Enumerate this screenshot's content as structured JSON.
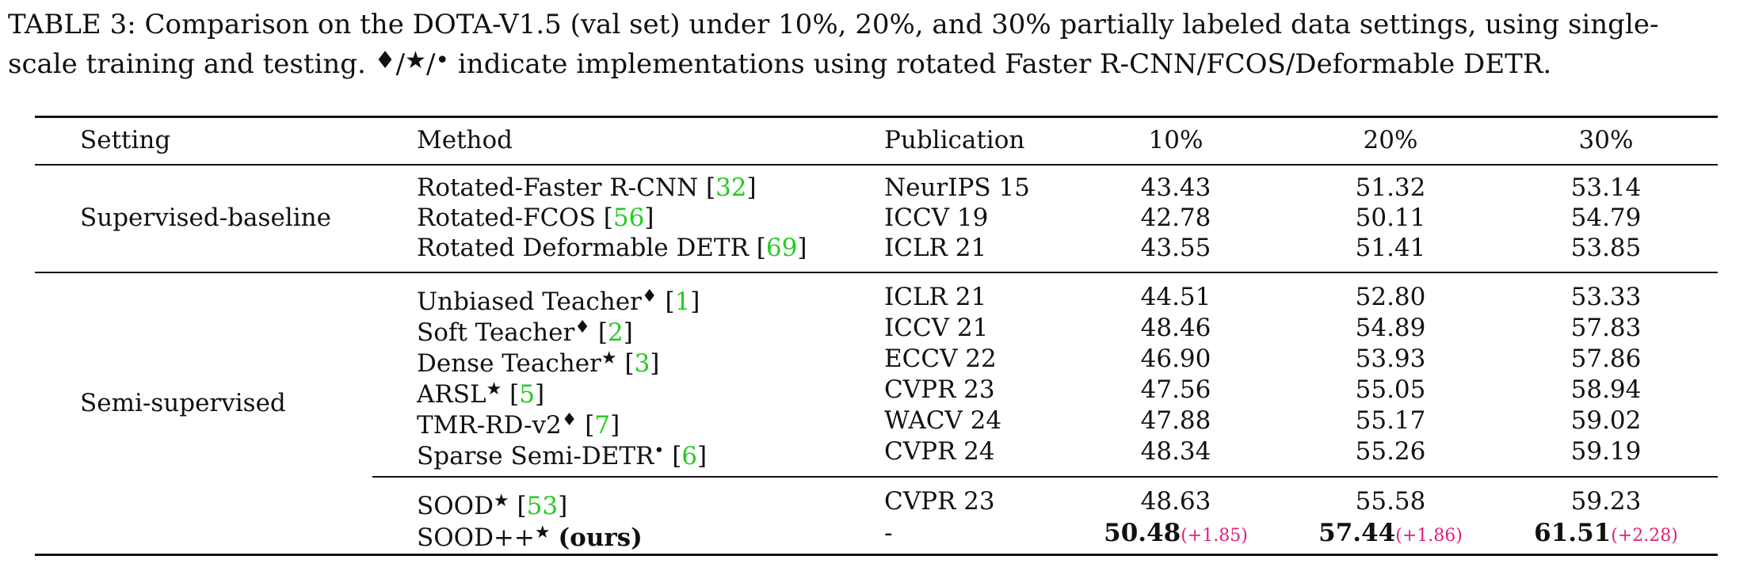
{
  "caption": {
    "line1": "TABLE 3: Comparison on the DOTA-V1.5 (val set) under 10%, 20%, and 30% partially labeled data settings, using single-",
    "line2_pre": "scale training and testing. ",
    "sym1": "♦",
    "sep1": "/",
    "sym2": "★",
    "sep2": "/",
    "sym3": "•",
    "line2_post": " indicate implementations using rotated Faster R-CNN/FCOS/Deformable DETR."
  },
  "header": {
    "setting": "Setting",
    "method": "Method",
    "publication": "Publication",
    "col10": "10%",
    "col20": "20%",
    "col30": "30%"
  },
  "groups": {
    "supervised": "Supervised-baseline",
    "semi": "Semi-supervised"
  },
  "rows": [
    {
      "method": "Rotated-Faster R-CNN",
      "sym": "",
      "ref": "32",
      "pub": "NeurIPS 15",
      "v10": "43.43",
      "v20": "51.32",
      "v30": "53.14"
    },
    {
      "method": "Rotated-FCOS",
      "sym": "",
      "ref": "56",
      "pub": "ICCV 19",
      "v10": "42.78",
      "v20": "50.11",
      "v30": "54.79"
    },
    {
      "method": "Rotated Deformable DETR",
      "sym": "",
      "ref": "69",
      "pub": "ICLR 21",
      "v10": "43.55",
      "v20": "51.41",
      "v30": "53.85"
    },
    {
      "method": "Unbiased Teacher",
      "sym": "♦",
      "ref": "1",
      "pub": "ICLR 21",
      "v10": "44.51",
      "v20": "52.80",
      "v30": "53.33"
    },
    {
      "method": "Soft Teacher",
      "sym": "♦",
      "ref": "2",
      "pub": "ICCV 21",
      "v10": "48.46",
      "v20": "54.89",
      "v30": "57.83"
    },
    {
      "method": "Dense Teacher",
      "sym": "★",
      "ref": "3",
      "pub": "ECCV 22",
      "v10": "46.90",
      "v20": "53.93",
      "v30": "57.86"
    },
    {
      "method": "ARSL",
      "sym": "★",
      "ref": "5",
      "pub": "CVPR 23",
      "v10": "47.56",
      "v20": "55.05",
      "v30": "58.94"
    },
    {
      "method": "TMR-RD-v2",
      "sym": "♦",
      "ref": "7",
      "pub": "WACV 24",
      "v10": "47.88",
      "v20": "55.17",
      "v30": "59.02"
    },
    {
      "method": "Sparse Semi-DETR",
      "sym": "•",
      "ref": "6",
      "pub": "CVPR 24",
      "v10": "48.34",
      "v20": "55.26",
      "v30": "59.19"
    },
    {
      "method": "SOOD",
      "sym": "★",
      "ref": "53",
      "pub": "CVPR 23",
      "v10": "48.63",
      "v20": "55.58",
      "v30": "59.23"
    }
  ],
  "ours": {
    "method": "SOOD++",
    "sym": "★",
    "tag": "(ours)",
    "pub": "-",
    "v10": "50.48",
    "d10": "(+1.85)",
    "v20": "57.44",
    "d20": "(+1.86)",
    "v30": "61.51",
    "d30": "(+2.28)"
  }
}
